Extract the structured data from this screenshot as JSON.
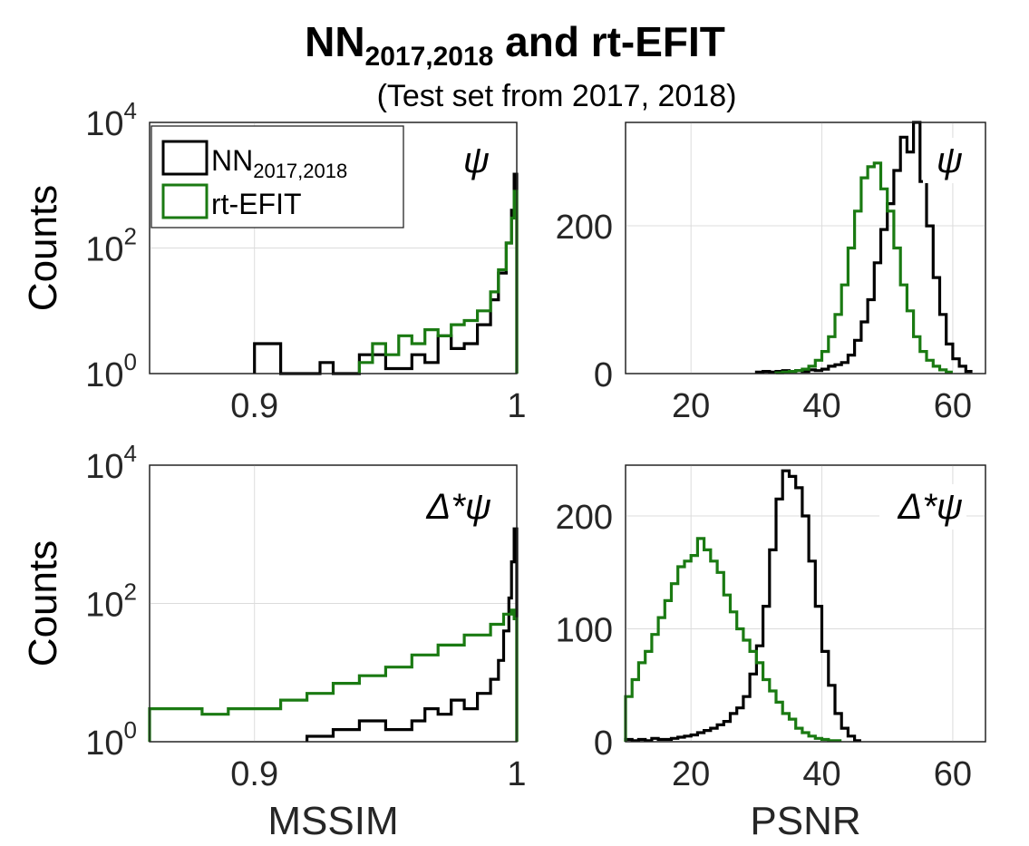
{
  "figure": {
    "title_main": "NN",
    "title_sub": "2017,2018",
    "title_tail": " and rt-EFIT",
    "subtitle": "(Test set from 2017, 2018)"
  },
  "legend": [
    {
      "label": "NN",
      "sub": "2017,2018",
      "color": "#000000"
    },
    {
      "label": "rt-EFIT",
      "sub": "",
      "color": "#1a7a12"
    }
  ],
  "chart_data": [
    {
      "id": "mssim-psi",
      "type": "histogram-stairs",
      "label": "ψ",
      "ylabel": "Counts",
      "xlabel": "",
      "xscale": "linear",
      "yscale": "log",
      "xlim": [
        0.86,
        1.0
      ],
      "ylim": [
        1,
        10000
      ],
      "xticks": [
        {
          "v": 0.9,
          "t": "0.9"
        },
        {
          "v": 1.0,
          "t": "1"
        }
      ],
      "yticks": [
        {
          "v": 1,
          "b": "10",
          "e": "0"
        },
        {
          "v": 100,
          "b": "10",
          "e": "2"
        },
        {
          "v": 10000,
          "b": "10",
          "e": "4"
        }
      ],
      "series": [
        {
          "name": "NN2017,2018",
          "color": "#000000",
          "x": [
            0.9,
            0.91,
            0.92,
            0.925,
            0.928,
            0.93,
            0.94,
            0.95,
            0.96,
            0.965,
            0.97,
            0.975,
            0.98,
            0.985,
            0.99,
            0.993,
            0.996,
            0.998,
            0.999,
            1.0
          ],
          "y": [
            3,
            1,
            1,
            1.5,
            1.5,
            1,
            2,
            1.2,
            2,
            1.5,
            4,
            2.5,
            3,
            6,
            15,
            40,
            120,
            400,
            1500,
            1
          ]
        },
        {
          "name": "rt-EFIT",
          "color": "#1a7a12",
          "x": [
            0.94,
            0.945,
            0.95,
            0.955,
            0.96,
            0.965,
            0.97,
            0.975,
            0.98,
            0.985,
            0.99,
            0.993,
            0.996,
            0.998,
            0.999,
            1.0
          ],
          "y": [
            1.5,
            3,
            2,
            4,
            3,
            5,
            4,
            6,
            7,
            10,
            20,
            45,
            120,
            300,
            800,
            1
          ]
        }
      ]
    },
    {
      "id": "psnr-psi",
      "type": "histogram-stairs",
      "label": "ψ",
      "ylabel": "",
      "xlabel": "",
      "xscale": "linear",
      "yscale": "linear",
      "xlim": [
        10,
        65
      ],
      "ylim": [
        0,
        340
      ],
      "xticks": [
        {
          "v": 20,
          "t": "20"
        },
        {
          "v": 40,
          "t": "40"
        },
        {
          "v": 60,
          "t": "60"
        }
      ],
      "yticks": [
        {
          "v": 0,
          "t": "0"
        },
        {
          "v": 200,
          "t": "200"
        }
      ],
      "series": [
        {
          "name": "NN2017,2018",
          "color": "#000000",
          "x": [
            30,
            31,
            32,
            33,
            34,
            35,
            36,
            37,
            38,
            39,
            40,
            41,
            42,
            43,
            44,
            45,
            46,
            47,
            48,
            49,
            50,
            51,
            52,
            53,
            54,
            55,
            56,
            57,
            58,
            59,
            60,
            61,
            62
          ],
          "y": [
            2,
            3,
            2,
            3,
            4,
            3,
            4,
            3,
            5,
            4,
            6,
            10,
            12,
            15,
            25,
            45,
            70,
            100,
            150,
            195,
            230,
            275,
            320,
            300,
            340,
            260,
            200,
            130,
            80,
            40,
            20,
            10,
            3
          ]
        },
        {
          "name": "rt-EFIT",
          "color": "#1a7a12",
          "x": [
            33,
            34,
            35,
            36,
            37,
            38,
            39,
            40,
            41,
            42,
            43,
            44,
            45,
            46,
            47,
            48,
            49,
            50,
            51,
            52,
            53,
            54,
            55,
            56,
            57,
            58,
            59
          ],
          "y": [
            1,
            2,
            3,
            4,
            6,
            10,
            18,
            30,
            50,
            80,
            120,
            170,
            220,
            265,
            280,
            285,
            250,
            220,
            170,
            120,
            85,
            50,
            30,
            18,
            10,
            5,
            2
          ]
        }
      ]
    },
    {
      "id": "mssim-delta",
      "type": "histogram-stairs",
      "label": "Δ*ψ",
      "ylabel": "Counts",
      "xlabel": "MSSIM",
      "xscale": "linear",
      "yscale": "log",
      "xlim": [
        0.86,
        1.0
      ],
      "ylim": [
        1,
        10000
      ],
      "xticks": [
        {
          "v": 0.9,
          "t": "0.9"
        },
        {
          "v": 1.0,
          "t": "1"
        }
      ],
      "yticks": [
        {
          "v": 1,
          "b": "10",
          "e": "0"
        },
        {
          "v": 100,
          "b": "10",
          "e": "2"
        },
        {
          "v": 10000,
          "b": "10",
          "e": "4"
        }
      ],
      "series": [
        {
          "name": "NN2017,2018",
          "color": "#000000",
          "x": [
            0.92,
            0.93,
            0.94,
            0.95,
            0.96,
            0.965,
            0.97,
            0.975,
            0.98,
            0.985,
            0.99,
            0.993,
            0.995,
            0.997,
            0.998,
            0.999,
            1.0
          ],
          "y": [
            1.2,
            1.5,
            2,
            1.5,
            2,
            3,
            2.5,
            4,
            3,
            5,
            8,
            15,
            40,
            120,
            400,
            1200,
            1
          ]
        },
        {
          "name": "rt-EFIT",
          "color": "#1a7a12",
          "x": [
            0.86,
            0.87,
            0.88,
            0.89,
            0.9,
            0.91,
            0.92,
            0.93,
            0.94,
            0.95,
            0.96,
            0.97,
            0.98,
            0.99,
            0.995,
            0.998,
            0.999,
            1.0
          ],
          "y": [
            3,
            3,
            2.5,
            3,
            3,
            4,
            5,
            7,
            9,
            12,
            18,
            25,
            35,
            50,
            70,
            80,
            60,
            1
          ]
        }
      ]
    },
    {
      "id": "psnr-delta",
      "type": "histogram-stairs",
      "label": "Δ*ψ",
      "ylabel": "",
      "xlabel": "PSNR",
      "xscale": "linear",
      "yscale": "linear",
      "xlim": [
        10,
        65
      ],
      "ylim": [
        0,
        245
      ],
      "xticks": [
        {
          "v": 20,
          "t": "20"
        },
        {
          "v": 40,
          "t": "40"
        },
        {
          "v": 60,
          "t": "60"
        }
      ],
      "yticks": [
        {
          "v": 0,
          "t": "0"
        },
        {
          "v": 100,
          "t": "100"
        },
        {
          "v": 200,
          "t": "200"
        }
      ],
      "series": [
        {
          "name": "NN2017,2018",
          "color": "#000000",
          "x": [
            10,
            11,
            12,
            13,
            14,
            15,
            16,
            17,
            18,
            19,
            20,
            21,
            22,
            23,
            24,
            25,
            26,
            27,
            28,
            29,
            30,
            31,
            32,
            33,
            34,
            35,
            36,
            37,
            38,
            39,
            40,
            41,
            42,
            43,
            44,
            45
          ],
          "y": [
            2,
            1,
            2,
            1,
            3,
            2,
            2,
            3,
            4,
            5,
            6,
            8,
            10,
            12,
            15,
            18,
            25,
            30,
            40,
            60,
            85,
            120,
            170,
            215,
            240,
            235,
            225,
            200,
            160,
            120,
            80,
            50,
            25,
            12,
            5,
            1
          ]
        },
        {
          "name": "rt-EFIT",
          "color": "#1a7a12",
          "x": [
            10,
            11,
            12,
            13,
            14,
            15,
            16,
            17,
            18,
            19,
            20,
            21,
            22,
            23,
            24,
            25,
            26,
            27,
            28,
            29,
            30,
            31,
            32,
            33,
            34,
            35,
            36,
            37,
            38,
            39,
            40,
            41,
            42
          ],
          "y": [
            40,
            55,
            70,
            80,
            95,
            110,
            125,
            140,
            155,
            160,
            165,
            180,
            170,
            160,
            150,
            130,
            115,
            100,
            90,
            80,
            70,
            55,
            45,
            35,
            25,
            20,
            12,
            8,
            5,
            3,
            2,
            1,
            1
          ]
        }
      ]
    }
  ]
}
